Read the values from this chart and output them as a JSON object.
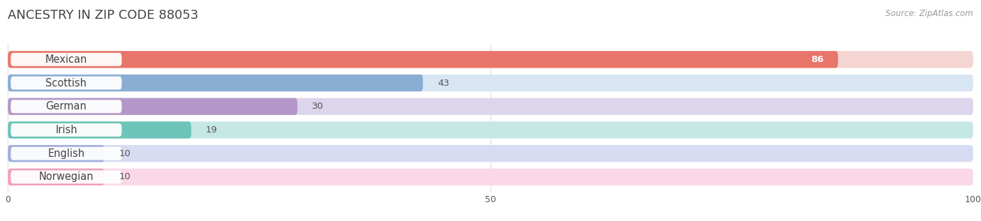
{
  "title": "ANCESTRY IN ZIP CODE 88053",
  "source": "Source: ZipAtlas.com",
  "categories": [
    "Mexican",
    "Scottish",
    "German",
    "Irish",
    "English",
    "Norwegian"
  ],
  "values": [
    86,
    43,
    30,
    19,
    10,
    10
  ],
  "bar_colors": [
    "#E8756A",
    "#8AADD4",
    "#B497C8",
    "#6DC4B8",
    "#A0AEDD",
    "#F2A0BC"
  ],
  "bar_bg_colors": [
    "#F5D5D2",
    "#D8E5F3",
    "#DDD5EB",
    "#C5E8E5",
    "#D8DCF2",
    "#FAD8E8"
  ],
  "xlim": [
    0,
    100
  ],
  "tick_label_color": "#555555",
  "title_color": "#444444",
  "source_color": "#999999",
  "grid_color": "#DDDDDD",
  "bg_color": "#FFFFFF",
  "bar_height": 0.72,
  "label_fontsize": 10.5,
  "value_fontsize": 9.5,
  "title_fontsize": 13
}
